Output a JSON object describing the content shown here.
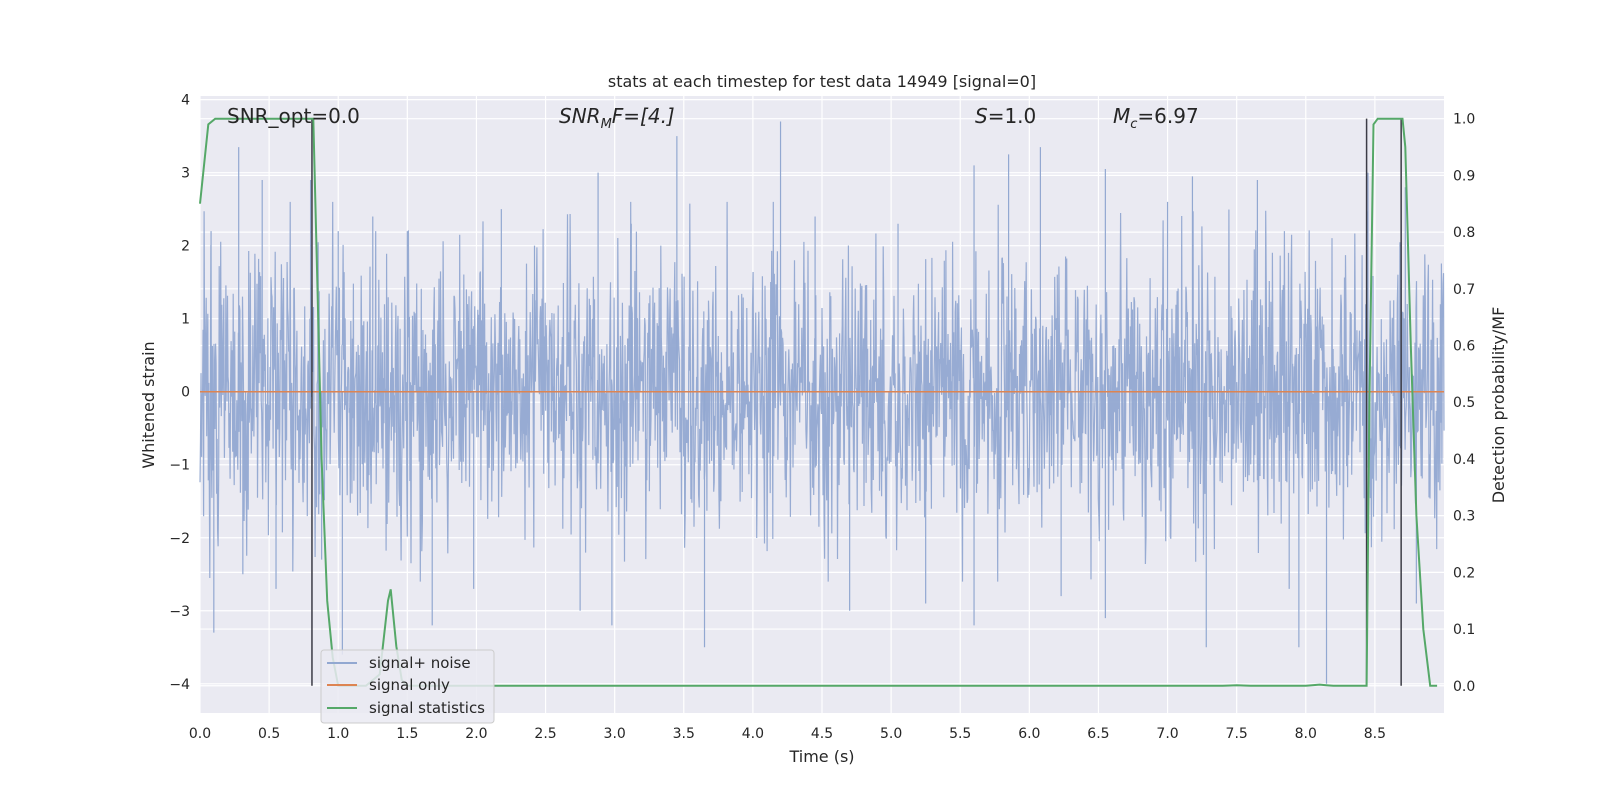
{
  "chart_data": {
    "type": "line",
    "title": "stats at each timestep for test data 14949 [signal=0]",
    "xlabel": "Time (s)",
    "ylabel": "Whitened strain",
    "ylabel_right": "Detection probability/MF",
    "xlim": [
      0.0,
      9.0
    ],
    "ylim": [
      -4.4,
      4.05
    ],
    "ylim_right": [
      -0.048,
      1.04
    ],
    "x_ticks": [
      "0.0",
      "0.5",
      "1.0",
      "1.5",
      "2.0",
      "2.5",
      "3.0",
      "3.5",
      "4.0",
      "4.5",
      "5.0",
      "5.5",
      "6.0",
      "6.5",
      "7.0",
      "7.5",
      "8.0",
      "8.5"
    ],
    "y_ticks": [
      "−4",
      "−3",
      "−2",
      "−1",
      "0",
      "1",
      "2",
      "3",
      "4"
    ],
    "y_right_ticks": [
      "0.0",
      "0.1",
      "0.2",
      "0.3",
      "0.4",
      "0.5",
      "0.6",
      "0.7",
      "0.8",
      "0.9",
      "1.0"
    ],
    "grid": true,
    "legend_position": "lower-left",
    "annotations": {
      "snr_opt": "SNR_opt=0.0",
      "snr_mf_main": "SNR",
      "snr_mf_sub": "M",
      "snr_mf_rest": "F=[4.]",
      "s_main": "S",
      "s_rest": "=1.0",
      "mc_main": "M",
      "mc_sub": "c",
      "mc_rest": "=6.97"
    },
    "series": [
      {
        "name": "signal+ noise",
        "color": "#92a8d1",
        "description_values": "white noise, approx. std 1.0",
        "spikes": [
          [
            0.08,
            2.2
          ],
          [
            0.1,
            -3.3
          ],
          [
            0.28,
            3.35
          ],
          [
            0.31,
            -2.5
          ],
          [
            0.45,
            2.9
          ],
          [
            0.55,
            -2.7
          ],
          [
            0.8,
            2.9
          ],
          [
            0.88,
            -2.3
          ],
          [
            1.0,
            2.2
          ],
          [
            1.03,
            -3.6
          ],
          [
            1.25,
            2.4
          ],
          [
            1.5,
            2.2
          ],
          [
            1.68,
            -3.2
          ],
          [
            1.98,
            -2.7
          ],
          [
            2.18,
            2.5
          ],
          [
            2.42,
            2.0
          ],
          [
            2.75,
            -3.0
          ],
          [
            2.88,
            3.0
          ],
          [
            2.98,
            -3.2
          ],
          [
            3.12,
            2.3
          ],
          [
            3.45,
            3.5
          ],
          [
            3.65,
            -3.5
          ],
          [
            4.2,
            3.7
          ],
          [
            4.45,
            2.4
          ],
          [
            4.7,
            -3.0
          ],
          [
            5.05,
            2.3
          ],
          [
            5.25,
            -2.9
          ],
          [
            5.6,
            3.1
          ],
          [
            5.6,
            -3.2
          ],
          [
            5.85,
            3.25
          ],
          [
            6.08,
            3.35
          ],
          [
            6.23,
            -2.8
          ],
          [
            6.55,
            3.05
          ],
          [
            6.55,
            -3.1
          ],
          [
            7.0,
            2.6
          ],
          [
            7.18,
            2.95
          ],
          [
            7.28,
            -3.5
          ],
          [
            7.65,
            2.9
          ],
          [
            7.88,
            -2.7
          ],
          [
            7.95,
            -3.5
          ],
          [
            8.15,
            -4.0
          ],
          [
            8.45,
            3.0
          ],
          [
            8.72,
            2.8
          ],
          [
            8.8,
            -2.9
          ]
        ]
      },
      {
        "name": "signal only",
        "color": "#dd8452",
        "x": [
          0.0,
          9.0
        ],
        "y": [
          0.0,
          0.0
        ]
      },
      {
        "name": "signal statistics",
        "color": "#55a868",
        "axis": "right",
        "x": [
          0.0,
          0.06,
          0.11,
          0.2,
          0.3,
          0.5,
          0.7,
          0.8,
          0.82,
          0.85,
          0.88,
          0.92,
          0.96,
          1.0,
          1.1,
          1.2,
          1.3,
          1.36,
          1.38,
          1.42,
          1.46,
          1.5,
          1.55,
          2.0,
          3.0,
          4.0,
          5.0,
          6.0,
          7.0,
          7.4,
          7.5,
          7.6,
          7.8,
          8.0,
          8.1,
          8.15,
          8.2,
          8.3,
          8.4,
          8.44,
          8.46,
          8.49,
          8.52,
          8.55,
          8.6,
          8.65,
          8.7,
          8.72,
          8.76,
          8.8,
          8.85,
          8.9,
          8.95
        ],
        "y": [
          0.85,
          0.99,
          1.0,
          1.0,
          1.0,
          1.0,
          1.0,
          1.0,
          1.0,
          0.7,
          0.4,
          0.15,
          0.05,
          0.0,
          0.0,
          0.0,
          0.02,
          0.15,
          0.17,
          0.07,
          0.01,
          0.0,
          0.0,
          0.0,
          0.0,
          0.0,
          0.0,
          0.0,
          0.0,
          0.0,
          0.001,
          0.0,
          0.0,
          0.0,
          0.002,
          0.001,
          0.0,
          0.0,
          0.0,
          0.0,
          0.5,
          0.99,
          1.0,
          1.0,
          1.0,
          1.0,
          1.0,
          0.95,
          0.6,
          0.3,
          0.1,
          0.0,
          0.0
        ]
      }
    ],
    "vlines": [
      0.81,
      8.44,
      8.69
    ]
  }
}
